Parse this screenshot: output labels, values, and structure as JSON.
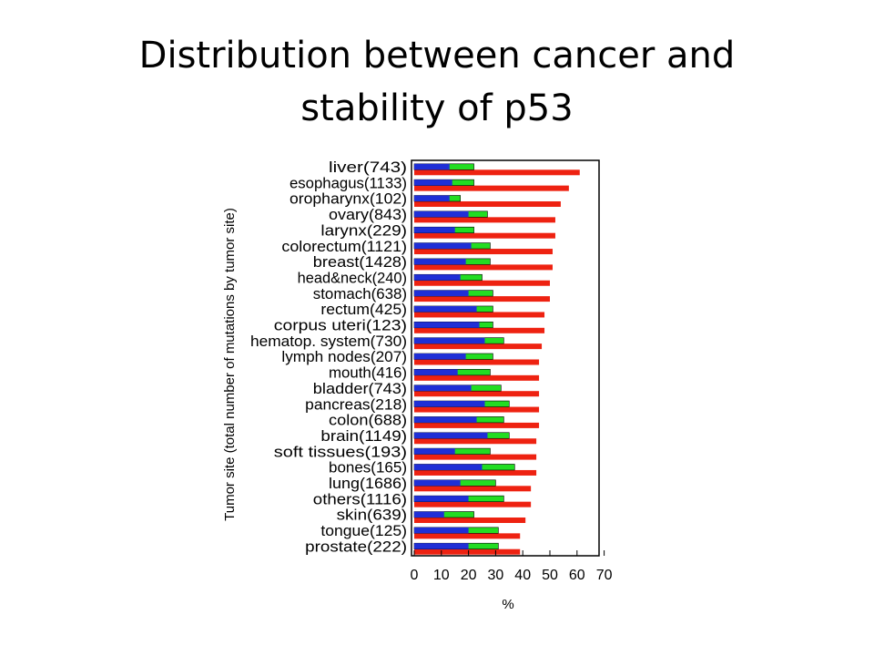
{
  "title": {
    "line1": "Distribution between cancer and",
    "line2": "stability of p53"
  },
  "chart_data": {
    "type": "bar",
    "orientation": "horizontal",
    "title": "Distribution between cancer and stability of p53",
    "xlabel": "%",
    "ylabel": "Tumor site (total number of mutations by tumor site)",
    "xlim": [
      0,
      70
    ],
    "xticks": [
      0,
      10,
      20,
      30,
      40,
      50,
      60,
      70
    ],
    "grid": false,
    "colors": {
      "blue": "#1f2fd6",
      "green": "#22dd22",
      "red": "#ee2211"
    },
    "categories": [
      "liver(743)",
      "esophagus(1133)",
      "oropharynx(102)",
      "ovary(843)",
      "larynx(229)",
      "colorectum(1121)",
      "breast(1428)",
      "head&neck(240)",
      "stomach(638)",
      "rectum(425)",
      "corpus uteri(123)",
      "hematop. system(730)",
      "lymph nodes(207)",
      "mouth(416)",
      "bladder(743)",
      "pancreas(218)",
      "colon(688)",
      "brain(1149)",
      "soft tissues(193)",
      "bones(165)",
      "lung(1686)",
      "others(1116)",
      "skin(639)",
      "tongue(125)",
      "prostate(222)"
    ],
    "series": [
      {
        "color": "blue",
        "values": [
          13,
          14,
          13,
          20,
          15,
          21,
          19,
          17,
          20,
          23,
          24,
          26,
          19,
          16,
          21,
          26,
          23,
          27,
          15,
          25,
          17,
          20,
          11,
          20,
          20
        ]
      },
      {
        "color": "green",
        "values": [
          22,
          22,
          17,
          27,
          22,
          28,
          28,
          25,
          29,
          29,
          29,
          33,
          29,
          28,
          32,
          35,
          33,
          35,
          28,
          37,
          30,
          33,
          22,
          31,
          31
        ]
      },
      {
        "color": "red",
        "values": [
          61,
          57,
          54,
          52,
          52,
          51,
          51,
          50,
          50,
          48,
          48,
          47,
          46,
          46,
          46,
          46,
          46,
          45,
          45,
          45,
          43,
          43,
          41,
          39,
          39
        ]
      }
    ]
  }
}
